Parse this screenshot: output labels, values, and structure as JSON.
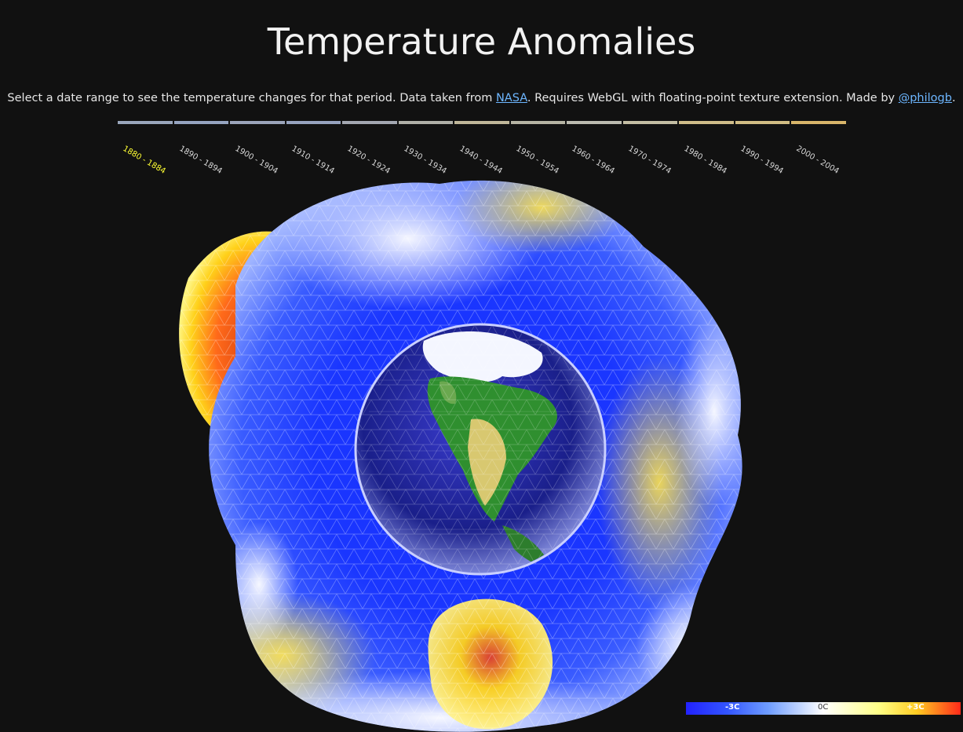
{
  "header": {
    "title": "Temperature Anomalies",
    "subtitle": {
      "part1": "Select a date range to see the temperature changes for that period. Data taken from ",
      "link1": "NASA",
      "part2": ". Requires WebGL with floating-point texture extension. Made by ",
      "link2": "@philogb",
      "part3": "."
    }
  },
  "timeline": {
    "selected_index": 0,
    "periods": [
      {
        "label": "1880 - 1884",
        "color": "#9aa6bc"
      },
      {
        "label": "1890 - 1894",
        "color": "#96a4c0"
      },
      {
        "label": "1900 - 1904",
        "color": "#9ba4ba"
      },
      {
        "label": "1910 - 1914",
        "color": "#97a3bf"
      },
      {
        "label": "1920 - 1924",
        "color": "#a3a7b1"
      },
      {
        "label": "1930 - 1934",
        "color": "#b0b0a8"
      },
      {
        "label": "1940 - 1944",
        "color": "#c0b79a"
      },
      {
        "label": "1950 - 1954",
        "color": "#b6b4a4"
      },
      {
        "label": "1960 - 1964",
        "color": "#bcbbb0"
      },
      {
        "label": "1970 - 1974",
        "color": "#c4bea4"
      },
      {
        "label": "1980 - 1984",
        "color": "#d0bd8a"
      },
      {
        "label": "1990 - 1994",
        "color": "#d2bd84"
      },
      {
        "label": "2000 - 2004",
        "color": "#d8b56a"
      }
    ]
  },
  "legend": {
    "min_label": "-3C",
    "mid_label": "0C",
    "max_label": "+3C",
    "colors": {
      "cold": "#2222ff",
      "neutral": "#ffffff",
      "warm": "#ff2a1a"
    }
  }
}
